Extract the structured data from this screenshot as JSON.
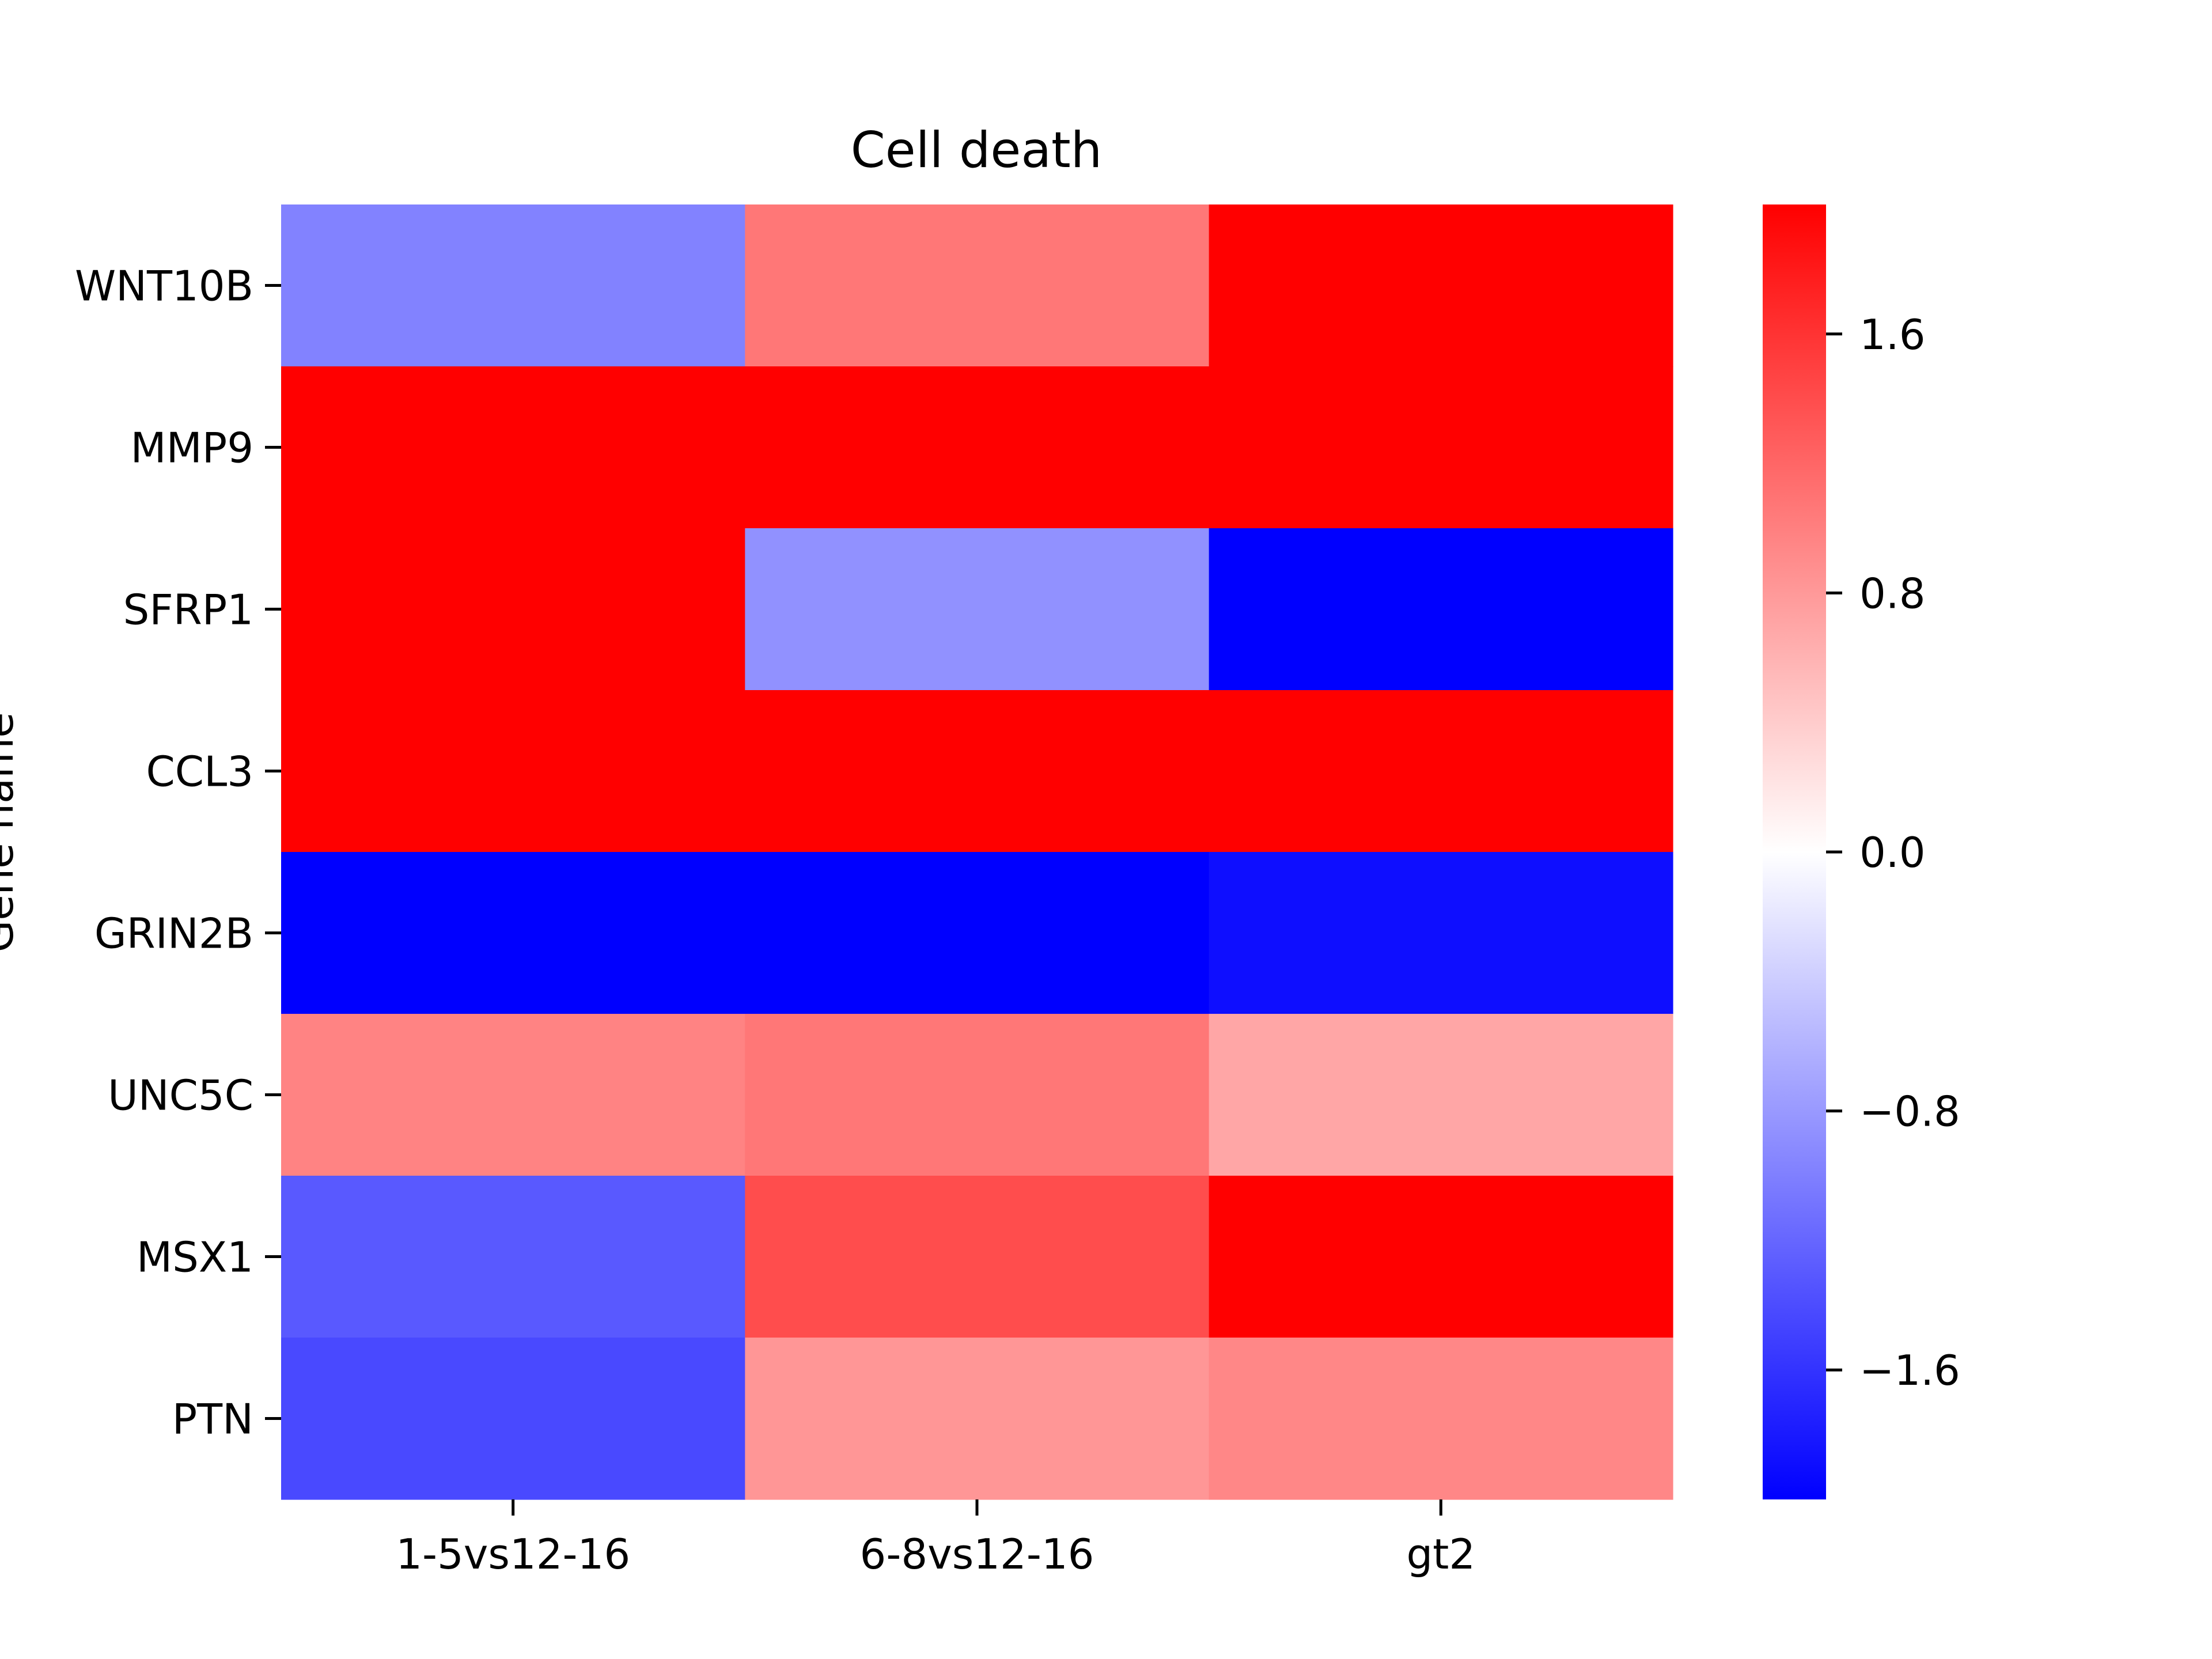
{
  "chart_data": {
    "type": "heatmap",
    "title": "Cell death",
    "xlabel": "",
    "ylabel": "Gene name",
    "x_categories": [
      "1-5vs12-16",
      "6-8vs12-16",
      "gt2"
    ],
    "y_categories": [
      "WNT10B",
      "MMP9",
      "SFRP1",
      "CCL3",
      "GRIN2B",
      "UNC5C",
      "MSX1",
      "PTN"
    ],
    "values": [
      [
        -0.98,
        1.07,
        2.5
      ],
      [
        2.5,
        2.5,
        2.5
      ],
      [
        2.5,
        -0.86,
        -2.5
      ],
      [
        2.5,
        2.5,
        2.5
      ],
      [
        -2.5,
        -2.5,
        -1.89
      ],
      [
        0.97,
        1.07,
        0.7
      ],
      [
        -1.3,
        1.4,
        2.5
      ],
      [
        -1.43,
        0.82,
        0.94
      ]
    ],
    "color_range": [
      -2.0,
      2.0
    ],
    "colormap": [
      "#0000ff",
      "#ffffff",
      "#ff0000"
    ],
    "colorbar_ticks": [
      "−1.6",
      "−0.8",
      "0.0",
      "0.8",
      "1.6"
    ],
    "colorbar_tick_values": [
      -1.6,
      -0.8,
      0.0,
      0.8,
      1.6
    ]
  }
}
